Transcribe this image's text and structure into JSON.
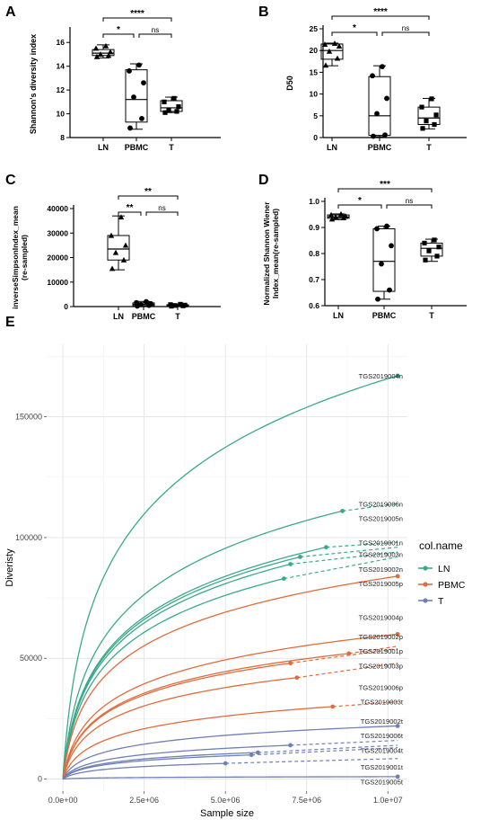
{
  "chart_data": [
    {
      "panel_label": "A",
      "type": "box",
      "ylabel": "Shannon's diversity index",
      "categories": [
        "LN",
        "PBMC",
        "T"
      ],
      "ylim": [
        8,
        17
      ],
      "yticks": [
        8,
        10,
        12,
        14,
        16
      ],
      "tick_labels": [
        "8",
        "10",
        "12",
        "14",
        "16"
      ],
      "boxes": [
        {
          "category": "LN",
          "min": 14.7,
          "q1": 14.9,
          "median": 15.1,
          "q3": 15.4,
          "max": 15.8,
          "marker": "triangle",
          "points": [
            14.8,
            14.9,
            15.0,
            15.2,
            15.5,
            15.7
          ]
        },
        {
          "category": "PBMC",
          "min": 8.7,
          "q1": 9.3,
          "median": 11.2,
          "q3": 13.7,
          "max": 14.2,
          "marker": "circle",
          "points": [
            8.8,
            9.6,
            11.4,
            12.6,
            13.6,
            14.1
          ]
        },
        {
          "category": "T",
          "min": 10.1,
          "q1": 10.2,
          "median": 10.5,
          "q3": 11.1,
          "max": 11.4,
          "marker": "square",
          "points": [
            10.1,
            10.2,
            10.3,
            10.6,
            11.0,
            11.3
          ]
        }
      ],
      "significance": [
        {
          "from": 0,
          "to": 2,
          "label": "****"
        },
        {
          "from": 0,
          "to": 1,
          "label": "*"
        },
        {
          "from": 1,
          "to": 2,
          "label": "ns"
        }
      ]
    },
    {
      "panel_label": "B",
      "type": "box",
      "ylabel": "D50",
      "categories": [
        "LN",
        "PBMC",
        "T"
      ],
      "ylim": [
        0,
        25
      ],
      "yticks": [
        0,
        5,
        10,
        15,
        20,
        25
      ],
      "tick_labels": [
        "0",
        "5",
        "10",
        "15",
        "20",
        "25"
      ],
      "boxes": [
        {
          "category": "LN",
          "min": 16.5,
          "q1": 18.0,
          "median": 20.0,
          "q3": 21.5,
          "max": 21.7,
          "marker": "triangle",
          "points": [
            16.6,
            18.2,
            19.8,
            21.0,
            21.4,
            21.6
          ]
        },
        {
          "category": "PBMC",
          "min": 0.2,
          "q1": 0.5,
          "median": 5.0,
          "q3": 14.0,
          "max": 16.5,
          "marker": "circle",
          "points": [
            0.3,
            0.6,
            5.5,
            9.0,
            14.2,
            16.3
          ]
        },
        {
          "category": "T",
          "min": 2.0,
          "q1": 3.0,
          "median": 4.5,
          "q3": 7.0,
          "max": 9.0,
          "marker": "square",
          "points": [
            2.1,
            3.0,
            3.8,
            5.2,
            7.0,
            8.9
          ]
        }
      ],
      "significance": [
        {
          "from": 0,
          "to": 2,
          "label": "****"
        },
        {
          "from": 0,
          "to": 1,
          "label": "*"
        },
        {
          "from": 1,
          "to": 2,
          "label": "ns"
        }
      ]
    },
    {
      "panel_label": "C",
      "type": "box",
      "ylabel": "inverseSimpsonIndex_mean\n(re-sampled)",
      "categories": [
        "LN",
        "PBMC",
        "T"
      ],
      "ylim": [
        0,
        40000
      ],
      "yticks": [
        0,
        10000,
        20000,
        30000,
        40000
      ],
      "tick_labels": [
        "0",
        "10000",
        "20000",
        "30000",
        "40000"
      ],
      "boxes": [
        {
          "category": "LN",
          "min": 15000,
          "q1": 19000,
          "median": 23500,
          "q3": 29000,
          "max": 37000,
          "marker": "triangle",
          "points": [
            15500,
            19000,
            22000,
            25000,
            29000,
            36500
          ]
        },
        {
          "category": "PBMC",
          "min": 100,
          "q1": 400,
          "median": 900,
          "q3": 1500,
          "max": 2100,
          "marker": "circle",
          "points": [
            200,
            500,
            800,
            1200,
            1600,
            2000
          ]
        },
        {
          "category": "T",
          "min": 100,
          "q1": 250,
          "median": 500,
          "q3": 750,
          "max": 1000,
          "marker": "square",
          "points": [
            150,
            300,
            450,
            600,
            800,
            950
          ]
        }
      ],
      "significance": [
        {
          "from": 0,
          "to": 2,
          "label": "**"
        },
        {
          "from": 0,
          "to": 1,
          "label": "**"
        },
        {
          "from": 1,
          "to": 2,
          "label": "ns"
        }
      ]
    },
    {
      "panel_label": "D",
      "type": "box",
      "ylabel": "Normalized Shannon Wiener\nIndex_mean(re-sampled)",
      "categories": [
        "LN",
        "PBMC",
        "T"
      ],
      "ylim": [
        0.6,
        1.0
      ],
      "yticks": [
        0.6,
        0.7,
        0.8,
        0.9,
        1.0
      ],
      "tick_labels": [
        "0.6",
        "0.7",
        "0.8",
        "0.9",
        "1.0"
      ],
      "boxes": [
        {
          "category": "LN",
          "min": 0.93,
          "q1": 0.935,
          "median": 0.94,
          "q3": 0.948,
          "max": 0.952,
          "marker": "triangle",
          "points": [
            0.932,
            0.937,
            0.94,
            0.944,
            0.948,
            0.951
          ]
        },
        {
          "category": "PBMC",
          "min": 0.625,
          "q1": 0.655,
          "median": 0.77,
          "q3": 0.895,
          "max": 0.905,
          "marker": "circle",
          "points": [
            0.625,
            0.66,
            0.76,
            0.83,
            0.895,
            0.905
          ]
        },
        {
          "category": "T",
          "min": 0.77,
          "q1": 0.79,
          "median": 0.82,
          "q3": 0.84,
          "max": 0.855,
          "marker": "square",
          "points": [
            0.775,
            0.79,
            0.81,
            0.825,
            0.84,
            0.852
          ]
        }
      ],
      "significance": [
        {
          "from": 0,
          "to": 2,
          "label": "***"
        },
        {
          "from": 0,
          "to": 1,
          "label": "*"
        },
        {
          "from": 1,
          "to": 2,
          "label": "ns"
        }
      ]
    },
    {
      "panel_label": "E",
      "type": "line",
      "xlabel": "Sample size",
      "ylabel": "Diveristy",
      "xlim": [
        -500000,
        10600000
      ],
      "ylim": [
        -5000,
        180000
      ],
      "xticks": [
        0,
        2500000,
        5000000,
        7500000,
        10000000
      ],
      "xtick_labels": [
        "0.0e+00",
        "2.5e+06",
        "5.0e+06",
        "7.5e+06",
        "1.0e+07"
      ],
      "yticks": [
        0,
        50000,
        100000,
        150000
      ],
      "ytick_labels": [
        "0",
        "50000",
        "100000",
        "150000"
      ],
      "grid": true,
      "legend": {
        "title": "col.name",
        "position": "right",
        "entries": [
          {
            "name": "LN",
            "color": "#3aa98b"
          },
          {
            "name": "PBMC",
            "color": "#e16b3c"
          },
          {
            "name": "T",
            "color": "#6f80b8"
          }
        ]
      },
      "colors": {
        "LN": "#3aa98b",
        "PBMC": "#e16b3c",
        "T": "#6f80b8"
      },
      "series": [
        {
          "label": "TGS2019004n",
          "group": "LN",
          "observed_x": 10300000,
          "observed_y": 167000,
          "end_y": 167000,
          "label_y": 167000
        },
        {
          "label": "TGS2019006n",
          "group": "LN",
          "observed_x": 8600000,
          "observed_y": 111000,
          "end_y": 114000,
          "label_y": 114000
        },
        {
          "label": "TGS2019005n",
          "group": "LN",
          "observed_x": 8100000,
          "observed_y": 96000,
          "end_y": 98000,
          "label_y": 108000
        },
        {
          "label": "TGS2019001n",
          "group": "LN",
          "observed_x": 7000000,
          "observed_y": 89000,
          "end_y": 94000,
          "label_y": 98000
        },
        {
          "label": "TGS2019003n",
          "group": "LN",
          "observed_x": 7300000,
          "observed_y": 92000,
          "end_y": 96000,
          "label_y": 93000
        },
        {
          "label": "TGS2019002n",
          "group": "LN",
          "observed_x": 6800000,
          "observed_y": 83000,
          "end_y": 92000,
          "label_y": 87000
        },
        {
          "label": "TGS2019005p",
          "group": "PBMC",
          "observed_x": 10300000,
          "observed_y": 84000,
          "end_y": 84000,
          "label_y": 81000
        },
        {
          "label": "TGS2019004p",
          "group": "PBMC",
          "observed_x": 10300000,
          "observed_y": 60000,
          "end_y": 60000,
          "label_y": 67000
        },
        {
          "label": "TGS2019002p",
          "group": "PBMC",
          "observed_x": 8800000,
          "observed_y": 52000,
          "end_y": 55000,
          "label_y": 59000
        },
        {
          "label": "TGS2019001p",
          "group": "PBMC",
          "observed_x": 7000000,
          "observed_y": 48000,
          "end_y": 54000,
          "label_y": 53000
        },
        {
          "label": "TGS2019003p",
          "group": "PBMC",
          "observed_x": 7200000,
          "observed_y": 42000,
          "end_y": 48000,
          "label_y": 47000
        },
        {
          "label": "TGS2019006p",
          "group": "PBMC",
          "observed_x": 8300000,
          "observed_y": 30000,
          "end_y": 32000,
          "label_y": 38000
        },
        {
          "label": "TGS2019003t",
          "group": "T",
          "observed_x": 10300000,
          "observed_y": 22000,
          "end_y": 22000,
          "label_y": 32000
        },
        {
          "label": "TGS2019002t",
          "group": "T",
          "observed_x": 7000000,
          "observed_y": 14000,
          "end_y": 16000,
          "label_y": 24000
        },
        {
          "label": "TGS2019006t",
          "group": "T",
          "observed_x": 6000000,
          "observed_y": 11000,
          "end_y": 14000,
          "label_y": 18000
        },
        {
          "label": "TGS2019004t",
          "group": "T",
          "observed_x": 5800000,
          "observed_y": 10000,
          "end_y": 13000,
          "label_y": 12000
        },
        {
          "label": "TGS2019001t",
          "group": "T",
          "observed_x": 5000000,
          "observed_y": 6500,
          "end_y": 8500,
          "label_y": 5000
        },
        {
          "label": "TGS2019005t",
          "group": "T",
          "observed_x": 10300000,
          "observed_y": 1000,
          "end_y": 1000,
          "label_y": -1000
        }
      ]
    }
  ]
}
